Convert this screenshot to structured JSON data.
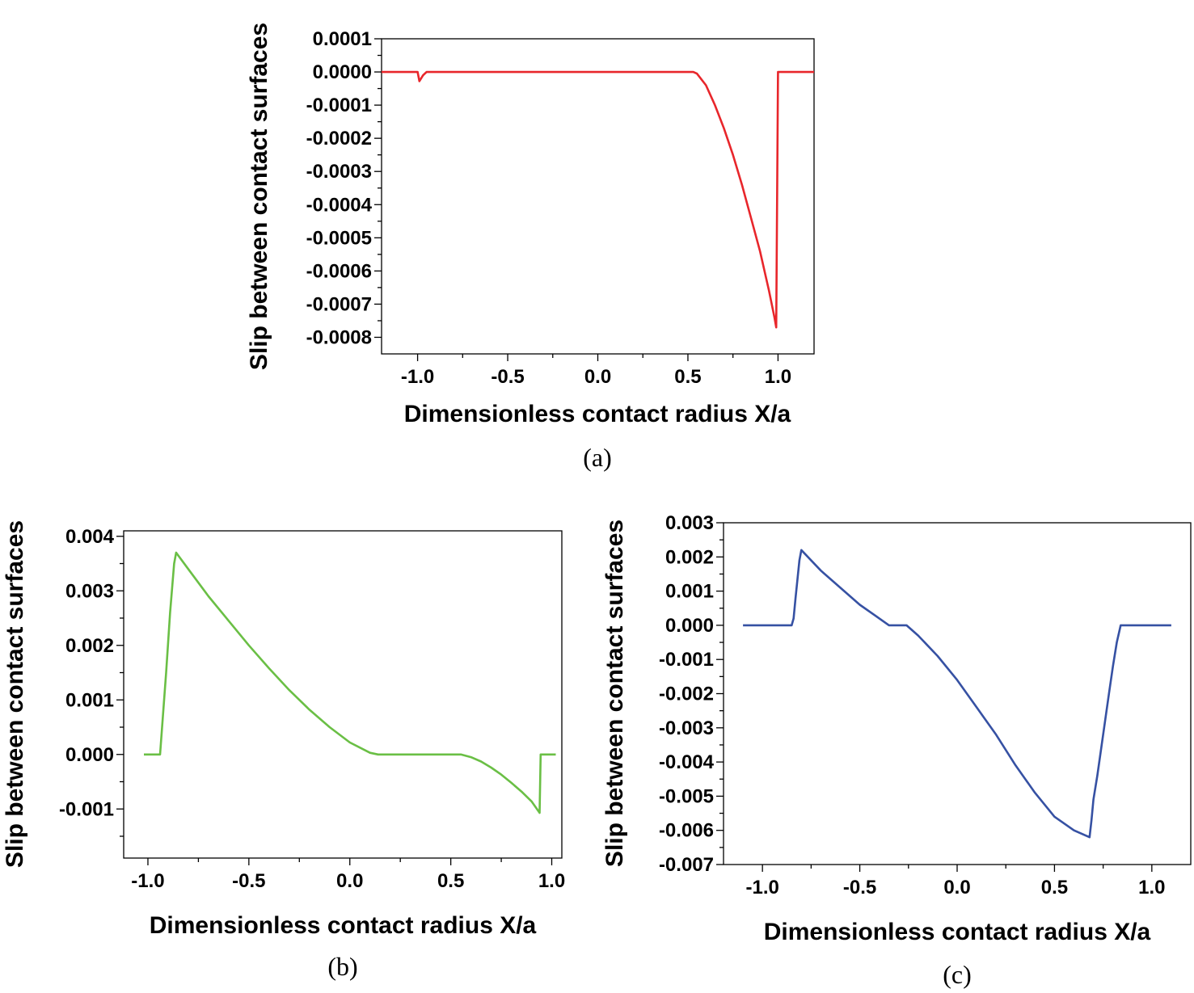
{
  "chart_data": [
    {
      "type": "line",
      "panel_label": "(a)",
      "xlabel": "Dimensionless contact radius X/a",
      "ylabel": "Slip between contact surfaces",
      "xlim": [
        -1.2,
        1.2
      ],
      "ylim": [
        -0.00085,
        0.0001
      ],
      "xticks": [
        -1.0,
        -0.5,
        0.0,
        0.5,
        1.0
      ],
      "xtick_labels": [
        "-1.0",
        "-0.5",
        "0.0",
        "0.5",
        "1.0"
      ],
      "yticks": [
        0.0001,
        0.0,
        -0.0001,
        -0.0002,
        -0.0003,
        -0.0004,
        -0.0005,
        -0.0006,
        -0.0007,
        -0.0008
      ],
      "ytick_labels": [
        "0.0001",
        "0.0000",
        "-0.0001",
        "-0.0002",
        "-0.0003",
        "-0.0004",
        "-0.0005",
        "-0.0006",
        "-0.0007",
        "-0.0008"
      ],
      "grid": false,
      "series": [
        {
          "name": "slip",
          "color": "#e8262b",
          "x": [
            -1.2,
            -1.0,
            -0.99,
            -0.97,
            -0.95,
            0.53,
            0.55,
            0.6,
            0.65,
            0.7,
            0.75,
            0.8,
            0.85,
            0.9,
            0.95,
            0.98,
            0.99,
            1.0,
            1.2
          ],
          "y": [
            0.0,
            0.0,
            -2.8e-05,
            -1e-05,
            0.0,
            0.0,
            -5e-06,
            -4e-05,
            -0.0001,
            -0.00017,
            -0.00025,
            -0.00034,
            -0.00044,
            -0.00054,
            -0.00066,
            -0.00074,
            -0.00077,
            0.0,
            0.0
          ]
        }
      ]
    },
    {
      "type": "line",
      "panel_label": "(b)",
      "xlabel": "Dimensionless contact radius X/a",
      "ylabel": "Slip between contact surfaces",
      "xlim": [
        -1.12,
        1.05
      ],
      "ylim": [
        -0.0019,
        0.0041
      ],
      "xticks": [
        -1.0,
        -0.5,
        0.0,
        0.5,
        1.0
      ],
      "xtick_labels": [
        "-1.0",
        "-0.5",
        "0.0",
        "0.5",
        "1.0"
      ],
      "yticks": [
        0.004,
        0.003,
        0.002,
        0.001,
        0.0,
        -0.001
      ],
      "ytick_labels": [
        "0.004",
        "0.003",
        "0.002",
        "0.001",
        "0.000",
        "-0.001"
      ],
      "grid": false,
      "series": [
        {
          "name": "slip",
          "color": "#6abf45",
          "x": [
            -1.02,
            -0.94,
            -0.93,
            -0.91,
            -0.89,
            -0.87,
            -0.86,
            -0.8,
            -0.7,
            -0.6,
            -0.5,
            -0.4,
            -0.3,
            -0.2,
            -0.1,
            0.0,
            0.1,
            0.14,
            0.5,
            0.55,
            0.6,
            0.65,
            0.7,
            0.75,
            0.8,
            0.85,
            0.9,
            0.94,
            0.945,
            1.02
          ],
          "y": [
            0.0,
            0.0,
            0.0005,
            0.0015,
            0.0026,
            0.0035,
            0.0037,
            0.0034,
            0.0029,
            0.00245,
            0.002,
            0.00158,
            0.00118,
            0.00082,
            0.0005,
            0.00022,
            3e-05,
            0.0,
            0.0,
            0.0,
            -5e-05,
            -0.00013,
            -0.00024,
            -0.00037,
            -0.00052,
            -0.00068,
            -0.00086,
            -0.00107,
            0.0,
            0.0
          ]
        }
      ]
    },
    {
      "type": "line",
      "panel_label": "(c)",
      "xlabel": "Dimensionless contact radius X/a",
      "ylabel": "Slip between contact surfaces",
      "xlim": [
        -1.2,
        1.2
      ],
      "ylim": [
        -0.007,
        0.003
      ],
      "xticks": [
        -1.0,
        -0.5,
        0.0,
        0.5,
        1.0
      ],
      "xtick_labels": [
        "-1.0",
        "-0.5",
        "0.0",
        "0.5",
        "1.0"
      ],
      "yticks": [
        0.003,
        0.002,
        0.001,
        0.0,
        -0.001,
        -0.002,
        -0.003,
        -0.004,
        -0.005,
        -0.006,
        -0.007
      ],
      "ytick_labels": [
        "0.003",
        "0.002",
        "0.001",
        "0.000",
        "-0.001",
        "-0.002",
        "-0.003",
        "-0.004",
        "-0.005",
        "-0.006",
        "-0.007"
      ],
      "grid": false,
      "series": [
        {
          "name": "slip",
          "color": "#3651a3",
          "x": [
            -1.1,
            -0.85,
            -0.84,
            -0.83,
            -0.81,
            -0.8,
            -0.7,
            -0.6,
            -0.5,
            -0.4,
            -0.35,
            -0.26,
            -0.2,
            -0.1,
            0.0,
            0.1,
            0.2,
            0.3,
            0.4,
            0.5,
            0.6,
            0.68,
            0.69,
            0.7,
            0.72,
            0.74,
            0.76,
            0.78,
            0.8,
            0.82,
            0.84,
            1.1
          ],
          "y": [
            0.0,
            0.0,
            0.0002,
            0.0008,
            0.0019,
            0.0022,
            0.0016,
            0.0011,
            0.0006,
            0.0002,
            0.0,
            0.0,
            -0.0003,
            -0.0009,
            -0.0016,
            -0.0024,
            -0.0032,
            -0.0041,
            -0.0049,
            -0.0056,
            -0.006,
            -0.0062,
            -0.0057,
            -0.0051,
            -0.0044,
            -0.0036,
            -0.0028,
            -0.002,
            -0.0012,
            -0.0005,
            0.0,
            0.0
          ]
        }
      ]
    }
  ]
}
